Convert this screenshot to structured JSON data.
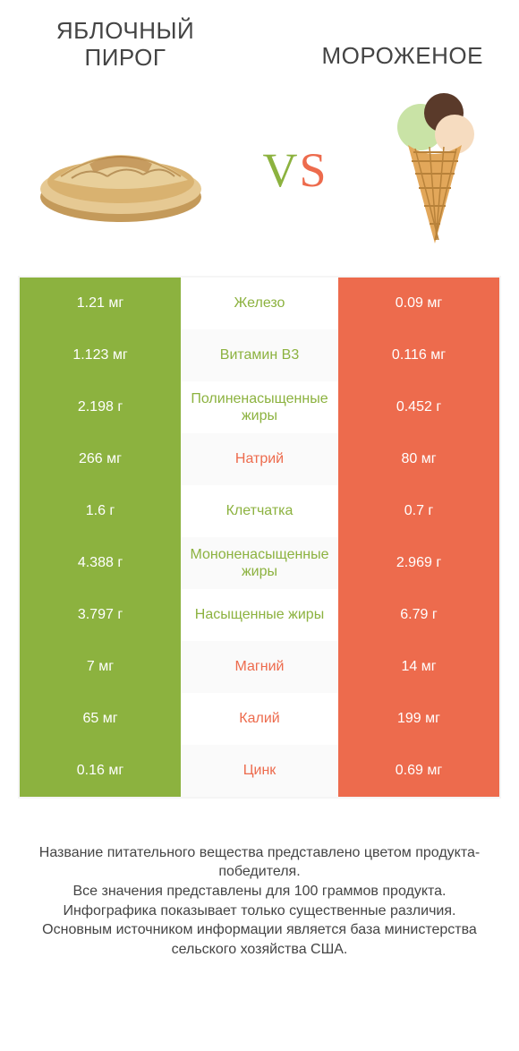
{
  "header": {
    "left_title": "Яблочный пирог",
    "right_title": "Мороженое",
    "vs_label": "VS",
    "vs_color_v": "#8cb23f",
    "vs_color_s": "#ed6b4d"
  },
  "colors": {
    "green": "#8cb23f",
    "orange": "#ed6b4d",
    "row_alt_bg": "#fafafa",
    "text": "#444444"
  },
  "table": {
    "rows": [
      {
        "left": "1.21 мг",
        "mid": "Железо",
        "right": "0.09 мг",
        "winner": "left"
      },
      {
        "left": "1.123 мг",
        "mid": "Витамин B3",
        "right": "0.116 мг",
        "winner": "left"
      },
      {
        "left": "2.198 г",
        "mid": "Полиненасыщенные жиры",
        "right": "0.452 г",
        "winner": "left"
      },
      {
        "left": "266 мг",
        "mid": "Натрий",
        "right": "80 мг",
        "winner": "right"
      },
      {
        "left": "1.6 г",
        "mid": "Клетчатка",
        "right": "0.7 г",
        "winner": "left"
      },
      {
        "left": "4.388 г",
        "mid": "Мононенасыщенные жиры",
        "right": "2.969 г",
        "winner": "left"
      },
      {
        "left": "3.797 г",
        "mid": "Насыщенные жиры",
        "right": "6.79 г",
        "winner": "left"
      },
      {
        "left": "7 мг",
        "mid": "Магний",
        "right": "14 мг",
        "winner": "right"
      },
      {
        "left": "65 мг",
        "mid": "Калий",
        "right": "199 мг",
        "winner": "right"
      },
      {
        "left": "0.16 мг",
        "mid": "Цинк",
        "right": "0.69 мг",
        "winner": "right"
      }
    ]
  },
  "footnote": {
    "line1": "Название питательного вещества представлено цветом продукта-победителя.",
    "line2": "Все значения представлены для 100 граммов продукта.",
    "line3": "Инфографика показывает только существенные различия.",
    "line4": "Основным источником информации является база министерства сельского хозяйства США."
  }
}
